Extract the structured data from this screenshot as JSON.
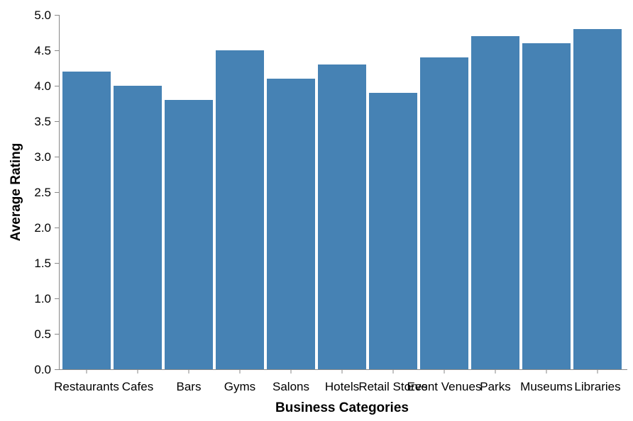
{
  "chart_data": {
    "type": "bar",
    "categories": [
      "Restaurants",
      "Cafes",
      "Bars",
      "Gyms",
      "Salons",
      "Hotels",
      "Retail Stores",
      "Event Venues",
      "Parks",
      "Museums",
      "Libraries"
    ],
    "values": [
      4.2,
      4.0,
      3.8,
      4.5,
      4.1,
      4.3,
      3.9,
      4.4,
      4.7,
      4.6,
      4.8
    ],
    "xlabel": "Business Categories",
    "ylabel": "Average Rating",
    "ylim": [
      0,
      5
    ],
    "yticks": [
      "0.0",
      "0.5",
      "1.0",
      "1.5",
      "2.0",
      "2.5",
      "3.0",
      "3.5",
      "4.0",
      "4.5",
      "5.0"
    ],
    "bar_color": "#4682b4",
    "grid": false
  }
}
